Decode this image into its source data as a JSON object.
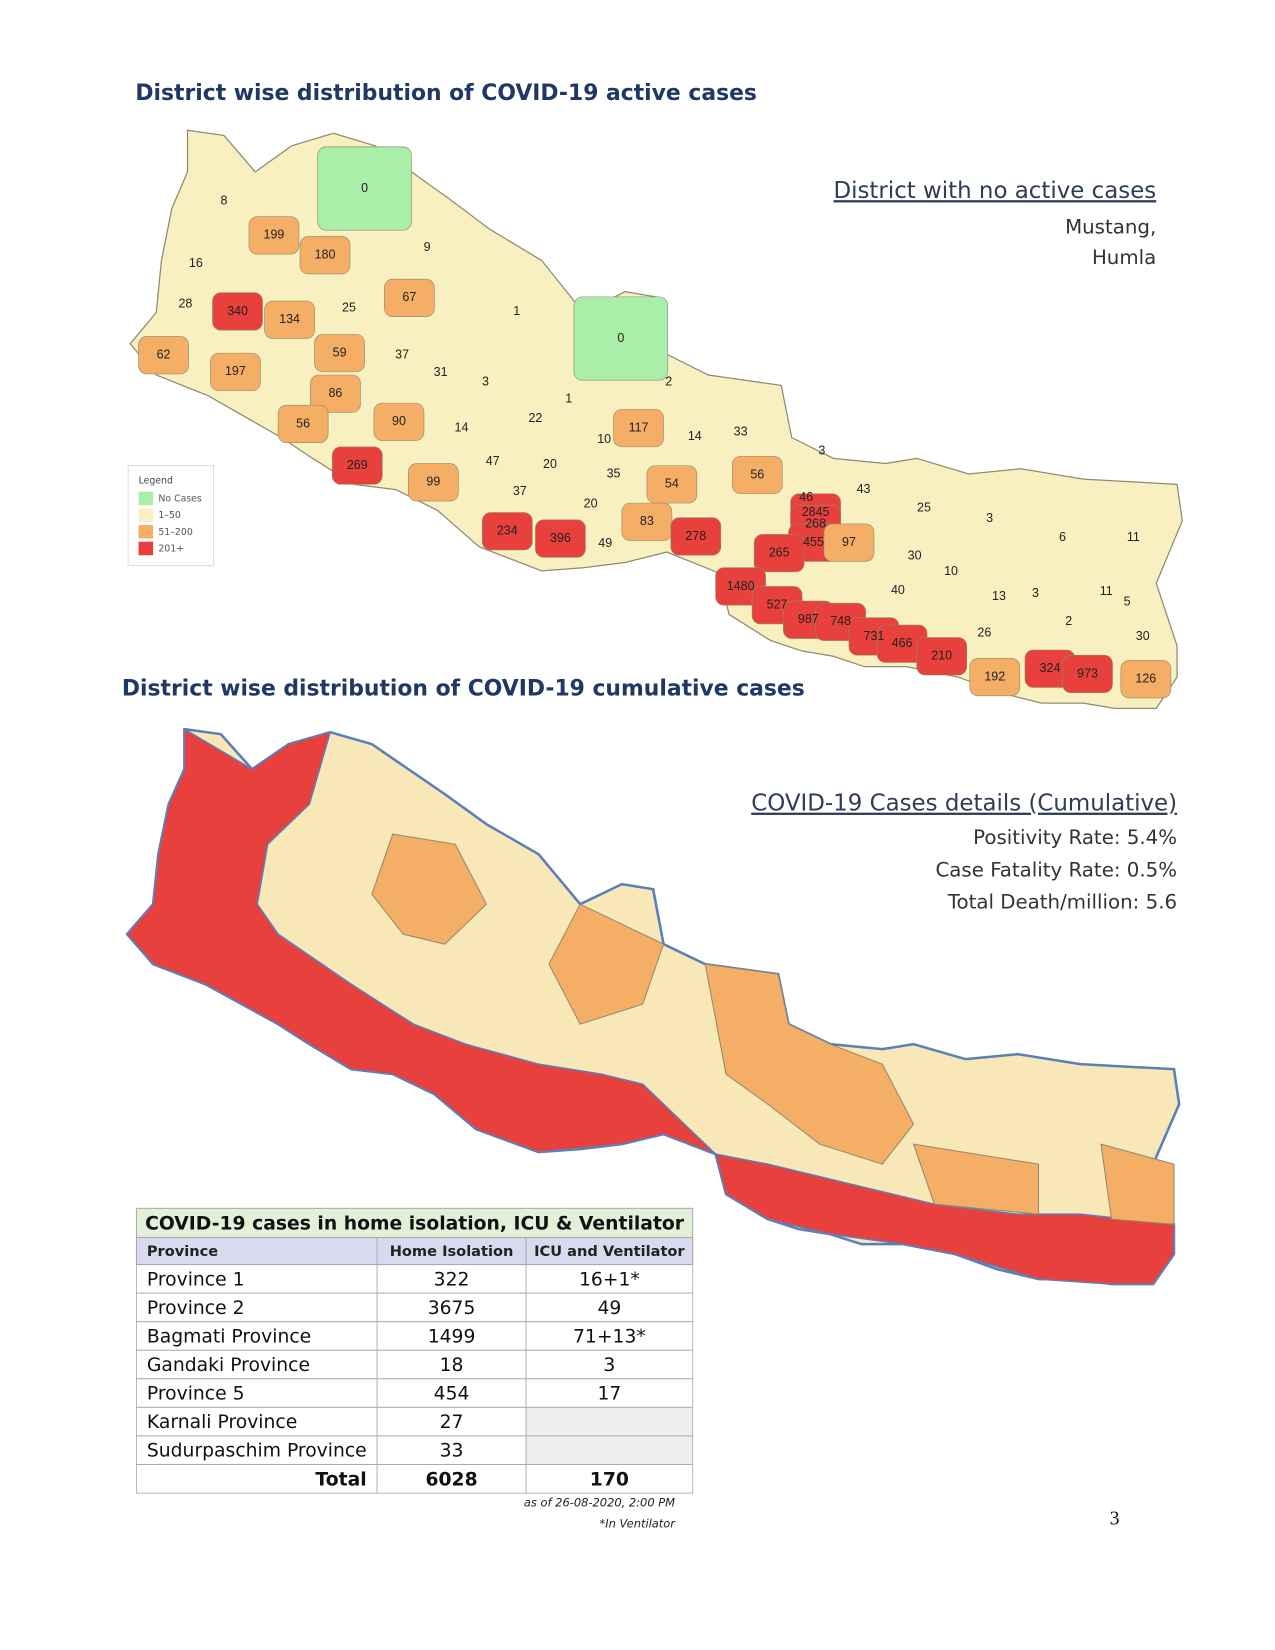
{
  "active_map": {
    "title": "District wise distribution of COVID-19 active cases",
    "values": [
      8,
      0,
      199,
      180,
      9,
      16,
      28,
      340,
      134,
      25,
      67,
      1,
      0,
      62,
      197,
      59,
      37,
      31,
      3,
      2,
      86,
      1,
      56,
      90,
      14,
      22,
      117,
      14,
      33,
      10,
      47,
      20,
      35,
      3,
      269,
      99,
      56,
      37,
      20,
      54,
      46,
      43,
      25,
      2845,
      268,
      455,
      97,
      83,
      234,
      396,
      49,
      278,
      265,
      3,
      6,
      11,
      30,
      10,
      40,
      13,
      3,
      11,
      5,
      1480,
      527,
      987,
      748,
      731,
      466,
      210,
      26,
      2,
      30,
      192,
      324,
      973,
      126
    ],
    "legend": {
      "title": "Legend",
      "items": [
        "No Cases",
        "1–50",
        "51–200",
        "201+"
      ]
    },
    "side": {
      "heading": "District with no active cases",
      "lines": [
        "Mustang,",
        "Humla"
      ]
    }
  },
  "cumulative_map": {
    "title": "District wise distribution of COVID-19 cumulative cases",
    "side": {
      "heading": "COVID-19 Cases details (Cumulative)",
      "lines": [
        "Positivity Rate: 5.4%",
        "Case Fatality Rate: 0.5%",
        "Total Death/million: 5.6"
      ]
    }
  },
  "table": {
    "title": "COVID-19 cases in home isolation, ICU & Ventilator",
    "header": [
      "Province",
      "Home Isolation",
      "ICU and Ventilator"
    ],
    "rows": [
      [
        "Province 1",
        "322",
        "16+1*"
      ],
      [
        "Province 2",
        "3675",
        "49"
      ],
      [
        "Bagmati Province",
        "1499",
        "71+13*"
      ],
      [
        "Gandaki Province",
        "18",
        "3"
      ],
      [
        "Province 5",
        "454",
        "17"
      ],
      [
        "Karnali Province",
        "27",
        ""
      ],
      [
        "Sudurpaschim Province",
        "33",
        ""
      ]
    ],
    "total": [
      "Total",
      "6028",
      "170"
    ],
    "notes": [
      "as of 26-08-2020, 2:00 PM",
      "*In Ventilator"
    ]
  },
  "page_number": "3"
}
